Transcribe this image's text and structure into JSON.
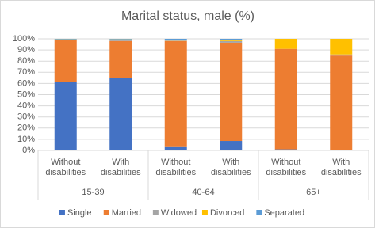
{
  "chart_data": {
    "type": "stacked_bar",
    "title": "Marital status, male (%)",
    "categories": [
      "Without disabilities",
      "With disabilities",
      "Without disabilities",
      "With disabilities",
      "Without disabilities",
      "With disabilities"
    ],
    "groups": [
      "15-39",
      "40-64",
      "65+"
    ],
    "series": [
      {
        "name": "Single",
        "color": "#4472c4",
        "values": [
          61,
          65,
          3,
          8.5,
          1,
          0
        ]
      },
      {
        "name": "Married",
        "color": "#ed7d31",
        "values": [
          38,
          33,
          95,
          88,
          90,
          85
        ]
      },
      {
        "name": "Widowed",
        "color": "#a5a5a5",
        "values": [
          0,
          1,
          0.5,
          1.5,
          0,
          1
        ]
      },
      {
        "name": "Divorced",
        "color": "#ffc000",
        "values": [
          0.5,
          0.5,
          0.5,
          1,
          9,
          14
        ]
      },
      {
        "name": "Separated",
        "color": "#5b9bd5",
        "values": [
          0.5,
          0.5,
          1,
          1,
          0,
          0
        ]
      }
    ],
    "ylim": [
      0,
      100
    ],
    "yticks": [
      {
        "value": 0,
        "label": "0%"
      },
      {
        "value": 10,
        "label": "10%"
      },
      {
        "value": 20,
        "label": "20%"
      },
      {
        "value": 30,
        "label": "30%"
      },
      {
        "value": 40,
        "label": "40%"
      },
      {
        "value": 50,
        "label": "50%"
      },
      {
        "value": 60,
        "label": "60%"
      },
      {
        "value": 70,
        "label": "70%"
      },
      {
        "value": 80,
        "label": "80%"
      },
      {
        "value": 90,
        "label": "90%"
      },
      {
        "value": 100,
        "label": "100%"
      }
    ],
    "grid": true
  }
}
